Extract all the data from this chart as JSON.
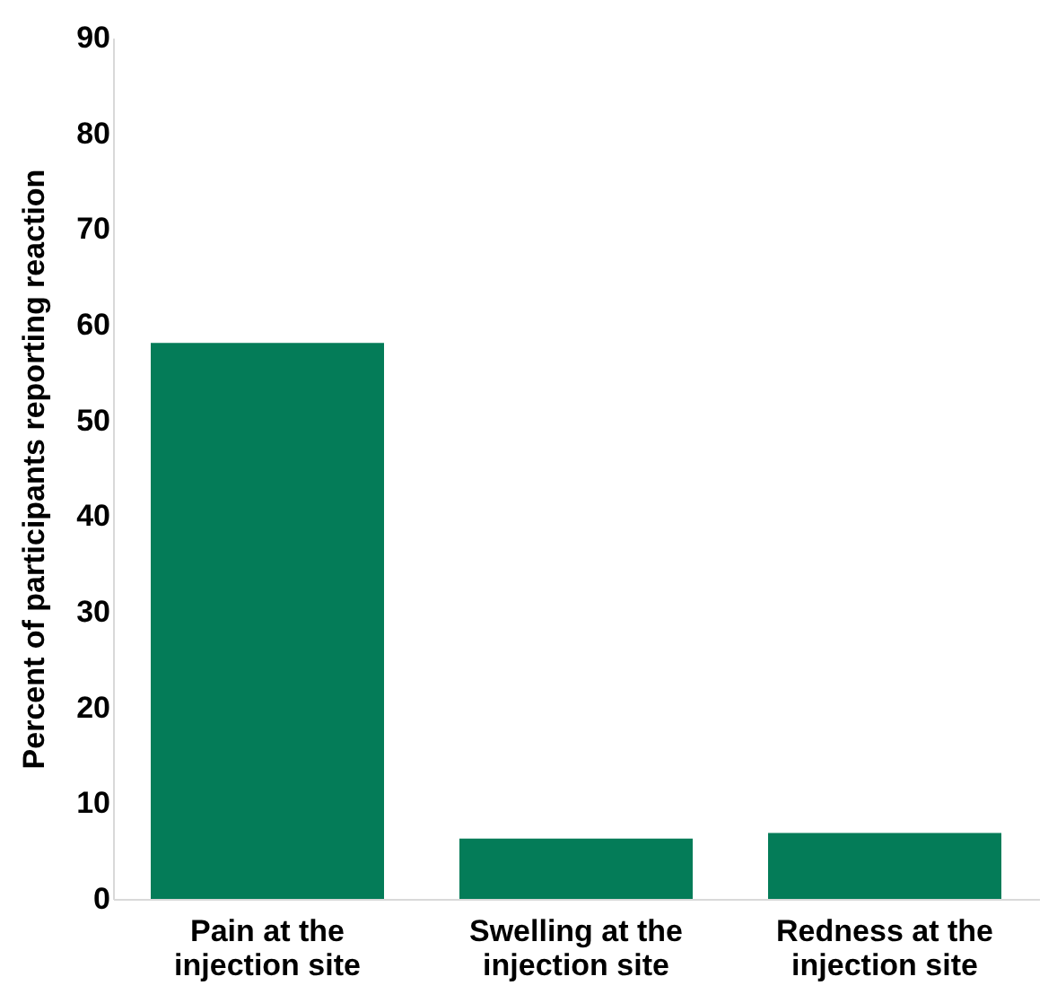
{
  "chart_data": {
    "type": "bar",
    "ylabel": "Percent of participants reporting reaction",
    "categories": [
      "Pain at the injection site",
      "Swelling at the injection site",
      "Redness at the injection site"
    ],
    "values": [
      58.1,
      6.3,
      6.9
    ],
    "color": "#047c58",
    "ylim": [
      0,
      90
    ],
    "yticks": [
      0,
      10,
      20,
      30,
      40,
      50,
      60,
      70,
      80,
      90
    ],
    "grid": false
  }
}
